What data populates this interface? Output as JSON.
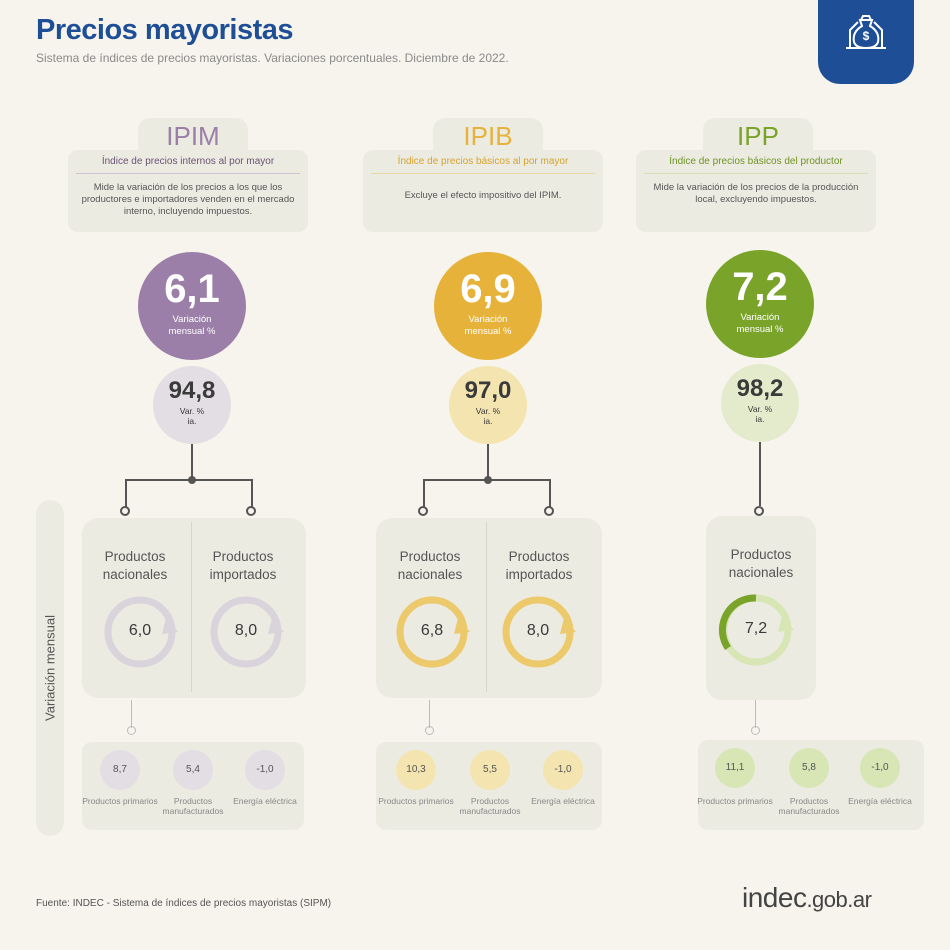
{
  "header": {
    "title": "Precios mayoristas",
    "subtitle": "Sistema de índices de precios mayoristas. Variaciones porcentuales. Diciembre de 2022.",
    "badge_icon": "money-bag-house-icon"
  },
  "side_label": "Variación mensual",
  "indices": [
    {
      "code": "IPIM",
      "name": "Índice de precios internos al por mayor",
      "description": "Mide la variación de los precios a los que los productores e importadores venden en el mercado interno, incluyendo impuestos.",
      "monthly": "6,1",
      "monthly_label": "Variación mensual %",
      "annual": "94,8",
      "annual_label": "Var. % ia.",
      "products": [
        {
          "label": "Productos nacionales",
          "value": "6,0"
        },
        {
          "label": "Productos importados",
          "value": "8,0"
        }
      ],
      "breakdown": [
        {
          "value": "8,7",
          "label": "Productos primarios"
        },
        {
          "value": "5,4",
          "label": "Productos manufacturados"
        },
        {
          "value": "-1,0",
          "label": "Energía eléctrica"
        }
      ]
    },
    {
      "code": "IPIB",
      "name": "Índice de precios básicos al por mayor",
      "description": "Excluye el efecto impositivo del IPIM.",
      "monthly": "6,9",
      "monthly_label": "Variación mensual %",
      "annual": "97,0",
      "annual_label": "Var. % ia.",
      "products": [
        {
          "label": "Productos nacionales",
          "value": "6,8"
        },
        {
          "label": "Productos importados",
          "value": "8,0"
        }
      ],
      "breakdown": [
        {
          "value": "10,3",
          "label": "Productos primarios"
        },
        {
          "value": "5,5",
          "label": "Productos manufacturados"
        },
        {
          "value": "-1,0",
          "label": "Energía eléctrica"
        }
      ]
    },
    {
      "code": "IPP",
      "name": "Índice de precios básicos del productor",
      "description": "Mide la variación de los precios de la producción local, excluyendo impuestos.",
      "monthly": "7,2",
      "monthly_label": "Variación mensual %",
      "annual": "98,2",
      "annual_label": "Var. % ia.",
      "products": [
        {
          "label": "Productos nacionales",
          "value": "7,2"
        }
      ],
      "breakdown": [
        {
          "value": "11,1",
          "label": "Productos primarios"
        },
        {
          "value": "5,8",
          "label": "Productos manufacturados"
        },
        {
          "value": "-1,0",
          "label": "Energía eléctrica"
        }
      ]
    }
  ],
  "colors": {
    "ipim": "#9b7fa8",
    "ipim_light": "#e3dde4",
    "ipim_ring": "#d9d3dc",
    "ipib": "#e6b23a",
    "ipib_light": "#f3e4b0",
    "ipib_ring": "#ecc96a",
    "ipp": "#7aa32a",
    "ipp_light": "#e4ebcc",
    "ipp_ring": "#d7e6b4",
    "title_blue": "#1e4f96"
  },
  "footer": {
    "source": "Fuente: INDEC - Sistema de índices de precios mayoristas (SIPM)",
    "logo_main": "indec",
    "logo_domain": ".gob.ar"
  }
}
